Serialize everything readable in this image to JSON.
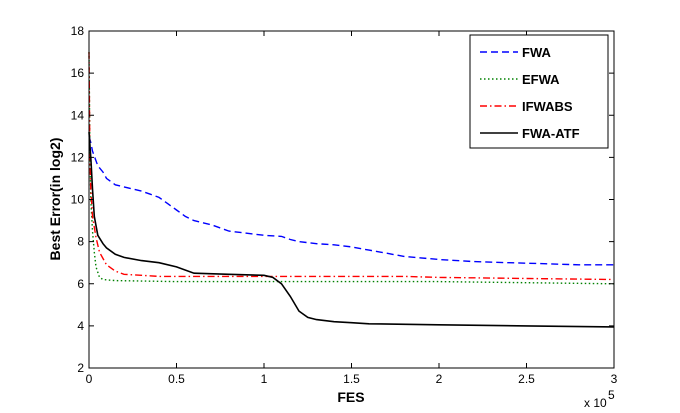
{
  "chart_data": {
    "type": "line",
    "xlabel": "FES",
    "ylabel": "Best Error(in log2)",
    "x_multiplier": "x 10",
    "x_multiplier_exp": "5",
    "xlim": [
      0,
      3
    ],
    "ylim": [
      2,
      18
    ],
    "x_ticks": [
      0,
      0.5,
      1,
      1.5,
      2,
      2.5,
      3
    ],
    "x_tick_labels": [
      "0",
      "0.5",
      "1",
      "1.5",
      "2",
      "2.5",
      "3"
    ],
    "y_ticks": [
      2,
      4,
      6,
      8,
      10,
      12,
      14,
      16,
      18
    ],
    "y_tick_labels": [
      "2",
      "4",
      "6",
      "8",
      "10",
      "12",
      "14",
      "16",
      "18"
    ],
    "grid": false,
    "legend_position": "top-right",
    "series": [
      {
        "name": "FWA",
        "color": "#0000ff",
        "dash": "dashed",
        "points": [
          [
            0,
            13.0
          ],
          [
            0.01,
            12.7
          ],
          [
            0.02,
            12.3
          ],
          [
            0.05,
            11.6
          ],
          [
            0.08,
            11.3
          ],
          [
            0.1,
            11.0
          ],
          [
            0.15,
            10.7
          ],
          [
            0.2,
            10.6
          ],
          [
            0.25,
            10.5
          ],
          [
            0.3,
            10.4
          ],
          [
            0.35,
            10.25
          ],
          [
            0.4,
            10.1
          ],
          [
            0.45,
            9.8
          ],
          [
            0.5,
            9.5
          ],
          [
            0.55,
            9.2
          ],
          [
            0.6,
            9.0
          ],
          [
            0.7,
            8.8
          ],
          [
            0.8,
            8.5
          ],
          [
            0.9,
            8.4
          ],
          [
            1.0,
            8.3
          ],
          [
            1.1,
            8.25
          ],
          [
            1.15,
            8.1
          ],
          [
            1.2,
            8.0
          ],
          [
            1.3,
            7.9
          ],
          [
            1.4,
            7.85
          ],
          [
            1.5,
            7.75
          ],
          [
            1.6,
            7.6
          ],
          [
            1.7,
            7.45
          ],
          [
            1.8,
            7.3
          ],
          [
            2.0,
            7.15
          ],
          [
            2.2,
            7.05
          ],
          [
            2.4,
            7.0
          ],
          [
            2.6,
            6.95
          ],
          [
            2.8,
            6.9
          ],
          [
            3.0,
            6.9
          ]
        ]
      },
      {
        "name": "EFWA",
        "color": "#008000",
        "dash": "dotted",
        "points": [
          [
            0,
            17.0
          ],
          [
            0.005,
            12.5
          ],
          [
            0.01,
            10.0
          ],
          [
            0.02,
            8.5
          ],
          [
            0.03,
            7.5
          ],
          [
            0.04,
            6.8
          ],
          [
            0.06,
            6.3
          ],
          [
            0.08,
            6.2
          ],
          [
            0.15,
            6.15
          ],
          [
            0.5,
            6.1
          ],
          [
            1.0,
            6.1
          ],
          [
            1.5,
            6.1
          ],
          [
            2.0,
            6.1
          ],
          [
            2.5,
            6.05
          ],
          [
            3.0,
            6.0
          ]
        ]
      },
      {
        "name": "IFWABS",
        "color": "#ff0000",
        "dash": "dashdot",
        "points": [
          [
            0,
            17.0
          ],
          [
            0.005,
            12.0
          ],
          [
            0.01,
            10.5
          ],
          [
            0.02,
            9.2
          ],
          [
            0.04,
            8.2
          ],
          [
            0.06,
            7.5
          ],
          [
            0.08,
            7.2
          ],
          [
            0.1,
            6.9
          ],
          [
            0.15,
            6.6
          ],
          [
            0.2,
            6.45
          ],
          [
            0.3,
            6.4
          ],
          [
            0.4,
            6.35
          ],
          [
            0.5,
            6.35
          ],
          [
            0.6,
            6.35
          ],
          [
            0.8,
            6.35
          ],
          [
            1.0,
            6.35
          ],
          [
            1.2,
            6.35
          ],
          [
            1.5,
            6.35
          ],
          [
            1.8,
            6.35
          ],
          [
            2.0,
            6.3
          ],
          [
            2.5,
            6.25
          ],
          [
            3.0,
            6.2
          ]
        ]
      },
      {
        "name": "FWA-ATF",
        "color": "#000000",
        "dash": "solid",
        "points": [
          [
            0,
            13.2
          ],
          [
            0.01,
            12.0
          ],
          [
            0.02,
            10.5
          ],
          [
            0.03,
            9.2
          ],
          [
            0.05,
            8.3
          ],
          [
            0.08,
            7.9
          ],
          [
            0.1,
            7.7
          ],
          [
            0.15,
            7.4
          ],
          [
            0.2,
            7.25
          ],
          [
            0.3,
            7.1
          ],
          [
            0.4,
            7.0
          ],
          [
            0.5,
            6.8
          ],
          [
            0.6,
            6.5
          ],
          [
            0.8,
            6.45
          ],
          [
            1.0,
            6.4
          ],
          [
            1.05,
            6.3
          ],
          [
            1.1,
            6.0
          ],
          [
            1.15,
            5.4
          ],
          [
            1.2,
            4.7
          ],
          [
            1.25,
            4.4
          ],
          [
            1.3,
            4.3
          ],
          [
            1.4,
            4.2
          ],
          [
            1.5,
            4.15
          ],
          [
            1.6,
            4.1
          ],
          [
            2.0,
            4.05
          ],
          [
            2.5,
            4.0
          ],
          [
            3.0,
            3.95
          ]
        ]
      }
    ]
  }
}
